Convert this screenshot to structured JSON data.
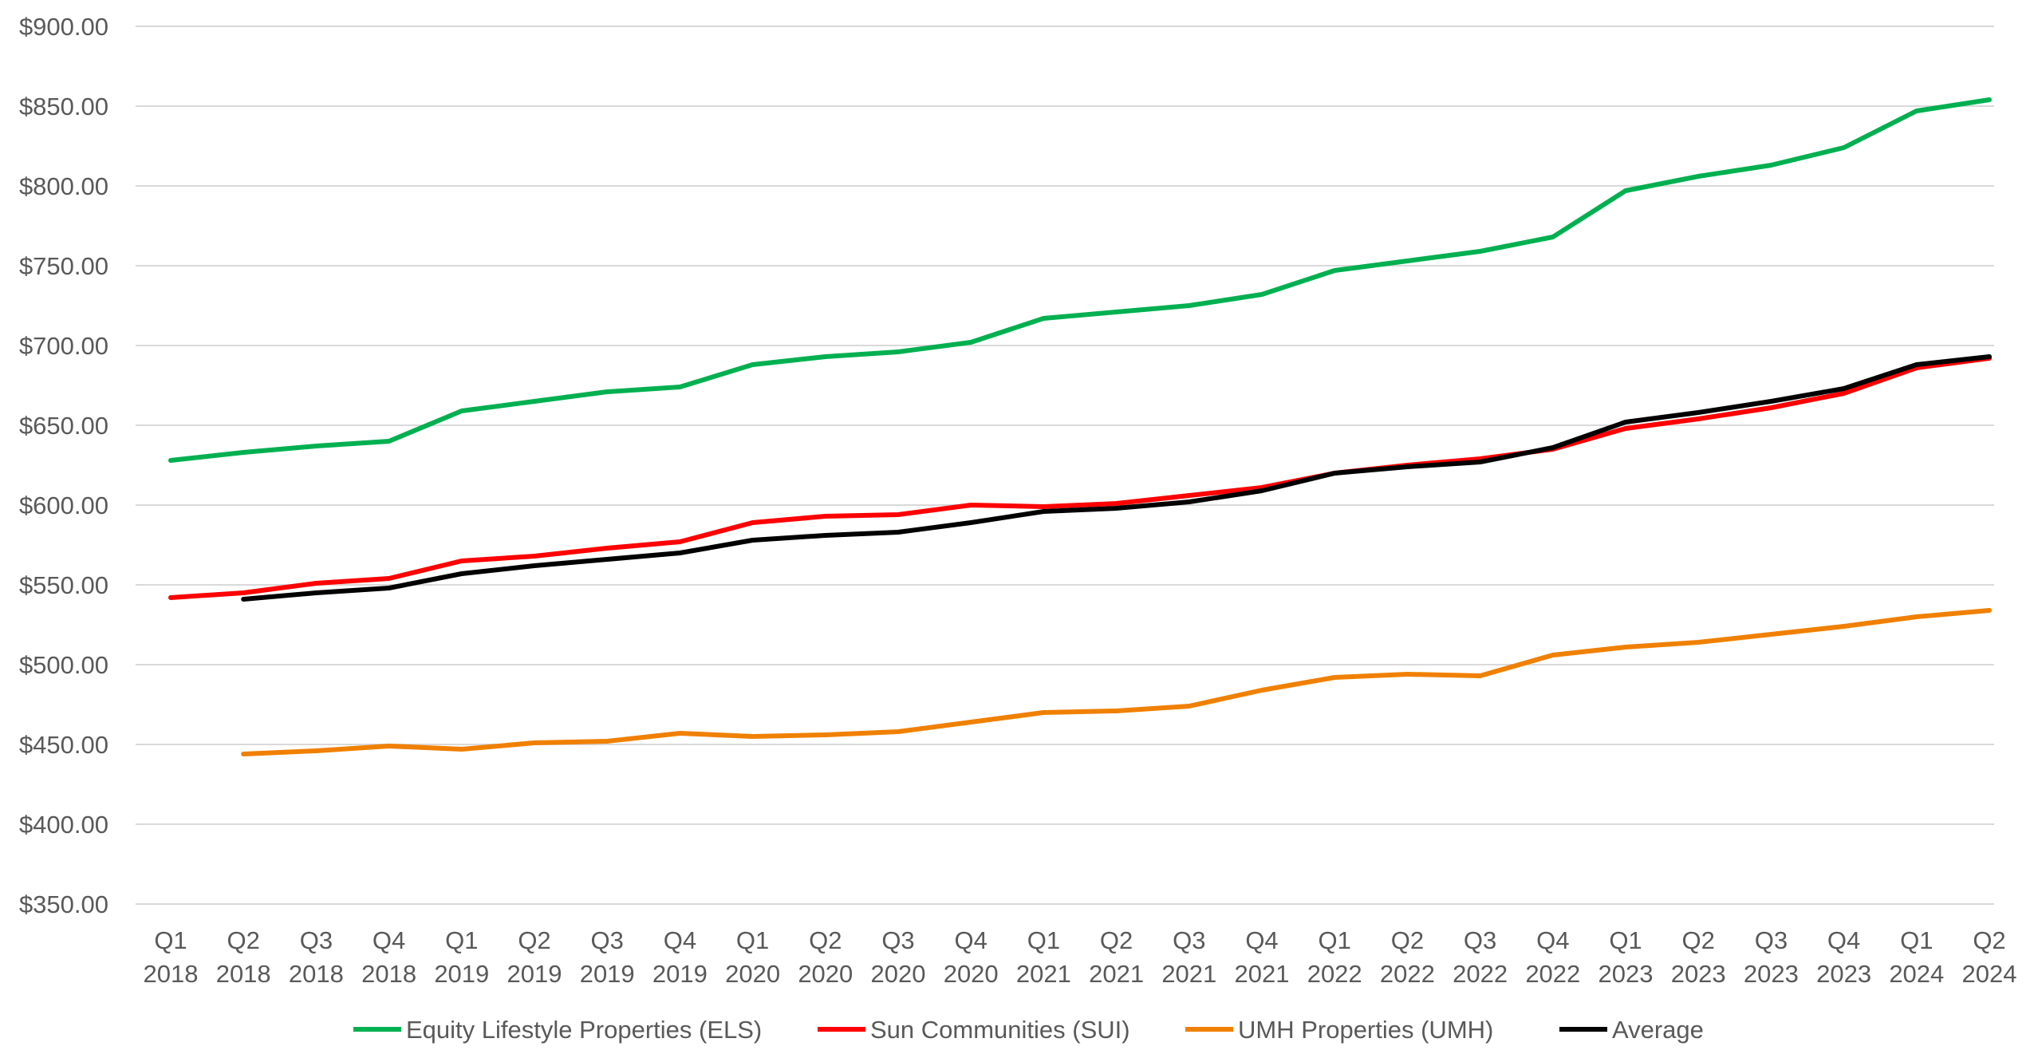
{
  "chart_data": {
    "type": "line",
    "title": "",
    "xlabel": "",
    "ylabel": "",
    "ylim": [
      350,
      900
    ],
    "y_ticks": [
      "$350.00",
      "$400.00",
      "$450.00",
      "$500.00",
      "$550.00",
      "$600.00",
      "$650.00",
      "$700.00",
      "$750.00",
      "$800.00",
      "$850.00",
      "$900.00"
    ],
    "y_tick_values": [
      350,
      400,
      450,
      500,
      550,
      600,
      650,
      700,
      750,
      800,
      850,
      900
    ],
    "grid": true,
    "legend_position": "bottom",
    "categories": [
      [
        "Q1",
        "2018"
      ],
      [
        "Q2",
        "2018"
      ],
      [
        "Q3",
        "2018"
      ],
      [
        "Q4",
        "2018"
      ],
      [
        "Q1",
        "2019"
      ],
      [
        "Q2",
        "2019"
      ],
      [
        "Q3",
        "2019"
      ],
      [
        "Q4",
        "2019"
      ],
      [
        "Q1",
        "2020"
      ],
      [
        "Q2",
        "2020"
      ],
      [
        "Q3",
        "2020"
      ],
      [
        "Q4",
        "2020"
      ],
      [
        "Q1",
        "2021"
      ],
      [
        "Q2",
        "2021"
      ],
      [
        "Q3",
        "2021"
      ],
      [
        "Q4",
        "2021"
      ],
      [
        "Q1",
        "2022"
      ],
      [
        "Q2",
        "2022"
      ],
      [
        "Q3",
        "2022"
      ],
      [
        "Q4",
        "2022"
      ],
      [
        "Q1",
        "2023"
      ],
      [
        "Q2",
        "2023"
      ],
      [
        "Q3",
        "2023"
      ],
      [
        "Q4",
        "2023"
      ],
      [
        "Q1",
        "2024"
      ],
      [
        "Q2",
        "2024"
      ]
    ],
    "series": [
      {
        "name": "Equity Lifestyle Properties (ELS)",
        "color": "#00b050",
        "values": [
          628,
          633,
          637,
          640,
          659,
          665,
          671,
          674,
          688,
          693,
          696,
          702,
          717,
          721,
          725,
          732,
          747,
          753,
          759,
          768,
          797,
          806,
          813,
          824,
          847,
          854
        ]
      },
      {
        "name": "Sun Communities (SUI)",
        "color": "#ff0000",
        "values": [
          542,
          545,
          551,
          554,
          565,
          568,
          573,
          577,
          589,
          593,
          594,
          600,
          599,
          601,
          606,
          611,
          620,
          625,
          629,
          635,
          648,
          654,
          661,
          670,
          686,
          692
        ]
      },
      {
        "name": "UMH Properties (UMH)",
        "color": "#f08000",
        "values": [
          null,
          444,
          446,
          449,
          447,
          451,
          452,
          457,
          455,
          456,
          458,
          464,
          470,
          471,
          474,
          484,
          492,
          494,
          493,
          506,
          511,
          514,
          519,
          524,
          530,
          534
        ]
      },
      {
        "name": "Average",
        "color": "#000000",
        "values": [
          null,
          541,
          545,
          548,
          557,
          562,
          566,
          570,
          578,
          581,
          583,
          589,
          596,
          598,
          602,
          609,
          620,
          624,
          627,
          636,
          652,
          658,
          665,
          673,
          688,
          693
        ]
      }
    ]
  }
}
